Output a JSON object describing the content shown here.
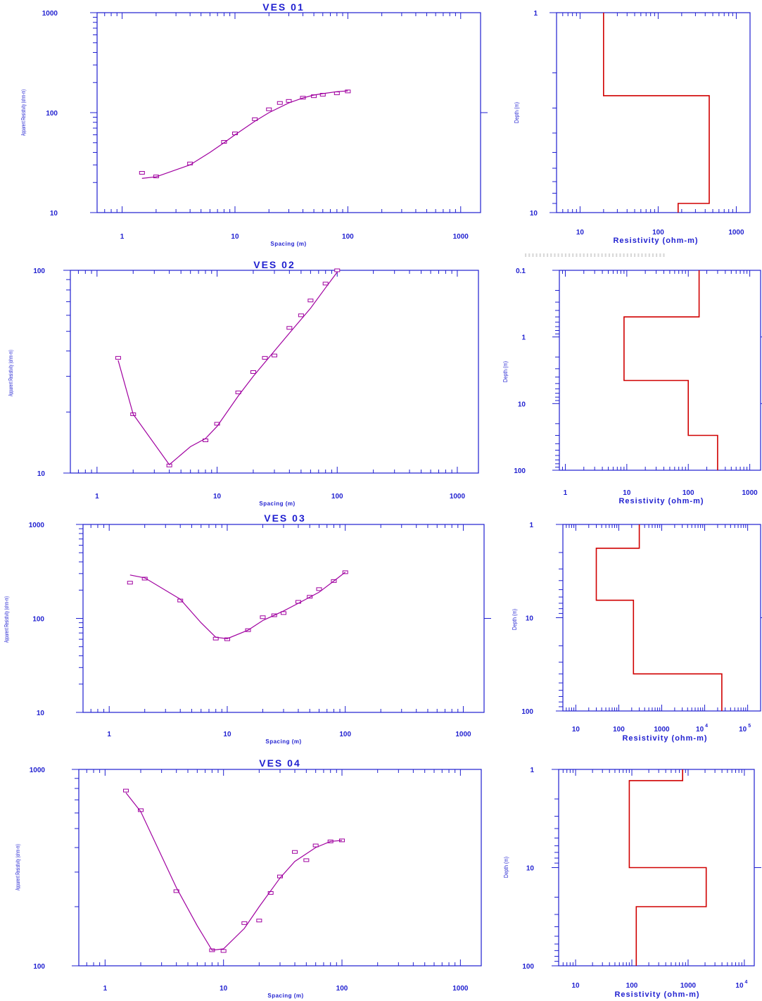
{
  "chart_data": [
    {
      "type": "scatter",
      "title": "VES 01",
      "xlabel": "Spacing (m)",
      "ylabel": "Apparent Resistivity (ohm-m)",
      "xscale": "log",
      "yscale": "log",
      "xlim": [
        0.6,
        1500
      ],
      "ylim": [
        10,
        1000
      ],
      "xticks": [
        "1",
        "10",
        "100",
        "1000"
      ],
      "yticks": [
        "10",
        "100",
        "1000"
      ],
      "series": [
        {
          "kind": "observed",
          "x": [
            1.5,
            2,
            4,
            8,
            10,
            15,
            20,
            25,
            30,
            40,
            50,
            60,
            80,
            100
          ],
          "y": [
            25,
            23,
            31,
            51,
            62,
            86,
            108,
            125,
            131,
            141,
            146,
            151,
            156,
            163
          ]
        },
        {
          "kind": "model",
          "x": [
            1.5,
            2,
            4,
            6,
            8,
            10,
            15,
            20,
            30,
            40,
            50,
            60,
            80,
            100
          ],
          "y": [
            22,
            22.8,
            30,
            40,
            50,
            60,
            82,
            100,
            125,
            140,
            150,
            155,
            162,
            165
          ]
        }
      ]
    },
    {
      "type": "line",
      "xlabel": "Resistivity (ohm-m)",
      "ylabel": "Depth (m)",
      "xscale": "log",
      "yscale": "log",
      "xlim": [
        5,
        1500
      ],
      "ylim": [
        1,
        10
      ],
      "xticks": [
        "10",
        "100",
        "1000"
      ],
      "yticks": [
        "1",
        "10"
      ],
      "layers": [
        {
          "rho": 20,
          "top": 1,
          "bottom": 2.6
        },
        {
          "rho": 450,
          "top": 2.6,
          "bottom": 9
        },
        {
          "rho": 180,
          "top": 9,
          "bottom": 10
        }
      ]
    },
    {
      "type": "scatter",
      "title": "VES 02",
      "xlabel": "Spacing (m)",
      "ylabel": "Apparent Resistivity (ohm-m)",
      "xscale": "log",
      "yscale": "log",
      "xlim": [
        0.6,
        1500
      ],
      "ylim": [
        10,
        100
      ],
      "xticks": [
        "1",
        "10",
        "100",
        "1000"
      ],
      "yticks": [
        "10",
        "100"
      ],
      "series": [
        {
          "kind": "observed",
          "x": [
            1.5,
            2,
            4,
            8,
            10,
            15,
            20,
            25,
            30,
            40,
            50,
            60,
            80,
            100
          ],
          "y": [
            37,
            19.5,
            10.9,
            14.5,
            17.5,
            25,
            31.5,
            37,
            38,
            52,
            60,
            71,
            86,
            100
          ]
        },
        {
          "kind": "model",
          "x": [
            1.5,
            2,
            4,
            6,
            8,
            10,
            15,
            20,
            30,
            40,
            60,
            80,
            100
          ],
          "y": [
            36,
            19.5,
            11,
            13.5,
            14.8,
            17,
            24,
            30,
            40,
            49,
            65,
            82,
            98
          ]
        }
      ]
    },
    {
      "type": "line",
      "xlabel": "Resistivity (ohm-m)",
      "ylabel": "Depth (m)",
      "xscale": "log",
      "yscale": "log",
      "xlim": [
        0.8,
        1500
      ],
      "ylim": [
        0.1,
        100
      ],
      "xticks": [
        "1",
        "10",
        "100",
        "1000"
      ],
      "yticks": [
        "0.1",
        "1",
        "10",
        "100"
      ],
      "layers": [
        {
          "rho": 150,
          "top": 0.1,
          "bottom": 0.5
        },
        {
          "rho": 9,
          "top": 0.5,
          "bottom": 4.5
        },
        {
          "rho": 100,
          "top": 4.5,
          "bottom": 30
        },
        {
          "rho": 300,
          "top": 30,
          "bottom": 100
        }
      ]
    },
    {
      "type": "scatter",
      "title": "VES 03",
      "xlabel": "Spacing (m)",
      "ylabel": "Apparent Resistivity (ohm-m)",
      "xscale": "log",
      "yscale": "log",
      "xlim": [
        0.6,
        1500
      ],
      "ylim": [
        10,
        1000
      ],
      "xticks": [
        "1",
        "10",
        "100",
        "1000"
      ],
      "yticks": [
        "10",
        "100",
        "1000"
      ],
      "series": [
        {
          "kind": "observed",
          "x": [
            1.5,
            2,
            4,
            8,
            10,
            15,
            20,
            25,
            30,
            40,
            50,
            60,
            80,
            100
          ],
          "y": [
            240,
            265,
            155,
            61,
            60,
            75,
            103,
            108,
            114,
            150,
            170,
            205,
            250,
            310
          ]
        },
        {
          "kind": "model",
          "x": [
            1.5,
            2,
            4,
            6,
            8,
            10,
            15,
            20,
            30,
            40,
            60,
            80,
            100
          ],
          "y": [
            290,
            270,
            160,
            90,
            63,
            61,
            75,
            95,
            120,
            145,
            190,
            250,
            310
          ]
        }
      ]
    },
    {
      "type": "line",
      "xlabel": "Resistivity (ohm-m)",
      "ylabel": "Depth (m)",
      "xscale": "log",
      "yscale": "log",
      "xlim": [
        5,
        200000
      ],
      "ylim": [
        1,
        100
      ],
      "xticks": [
        "10",
        "100",
        "1000",
        "10 4",
        "10 5"
      ],
      "yticks": [
        "1",
        "10",
        "100"
      ],
      "layers": [
        {
          "rho": 300,
          "top": 1,
          "bottom": 1.8
        },
        {
          "rho": 30,
          "top": 1.8,
          "bottom": 6.5
        },
        {
          "rho": 220,
          "top": 6.5,
          "bottom": 40
        },
        {
          "rho": 25000,
          "top": 40,
          "bottom": 100
        }
      ]
    },
    {
      "type": "scatter",
      "title": "VES 04",
      "xlabel": "Spacing (m)",
      "ylabel": "Apparent Resistivity (ohm-m)",
      "xscale": "log",
      "yscale": "log",
      "xlim": [
        0.6,
        1500
      ],
      "ylim": [
        100,
        1000
      ],
      "xticks": [
        "1",
        "10",
        "100",
        "1000"
      ],
      "yticks": [
        "100",
        "1000"
      ],
      "series": [
        {
          "kind": "observed",
          "x": [
            1.5,
            2,
            4,
            8,
            10,
            15,
            20,
            25,
            30,
            40,
            50,
            60,
            80,
            100
          ],
          "y": [
            780,
            620,
            240,
            120,
            119,
            165,
            170,
            235,
            285,
            380,
            345,
            410,
            430,
            435
          ]
        },
        {
          "kind": "model",
          "x": [
            1.5,
            2,
            4,
            6,
            8,
            10,
            15,
            20,
            30,
            40,
            60,
            80,
            100
          ],
          "y": [
            760,
            610,
            250,
            160,
            120,
            122,
            155,
            200,
            280,
            340,
            400,
            430,
            435
          ]
        }
      ]
    },
    {
      "type": "line",
      "xlabel": "Resistivity (ohm-m)",
      "ylabel": "Depth (m)",
      "xscale": "log",
      "yscale": "log",
      "xlim": [
        5,
        15000
      ],
      "ylim": [
        1,
        100
      ],
      "xticks": [
        "10",
        "100",
        "1000",
        "10 4"
      ],
      "yticks": [
        "1",
        "10",
        "100"
      ],
      "layers": [
        {
          "rho": 800,
          "top": 1,
          "bottom": 1.3
        },
        {
          "rho": 90,
          "top": 1.3,
          "bottom": 10
        },
        {
          "rho": 2100,
          "top": 10,
          "bottom": 25
        },
        {
          "rho": 120,
          "top": 25,
          "bottom": 100
        }
      ]
    }
  ]
}
